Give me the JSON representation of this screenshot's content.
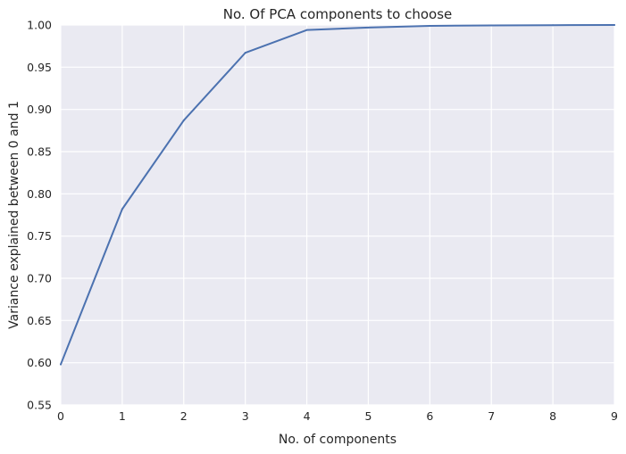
{
  "chart_data": {
    "type": "line",
    "title": "No. Of PCA components to choose",
    "xlabel": "No. of components",
    "ylabel": "Variance explained between 0 and 1",
    "xlim": [
      0,
      9
    ],
    "ylim": [
      0.55,
      1.0
    ],
    "x_ticks": [
      "0",
      "1",
      "2",
      "3",
      "4",
      "5",
      "6",
      "7",
      "8",
      "9"
    ],
    "y_ticks": [
      "0.55",
      "0.60",
      "0.65",
      "0.70",
      "0.75",
      "0.80",
      "0.85",
      "0.90",
      "0.95",
      "1.00"
    ],
    "grid": true,
    "series": [
      {
        "x": [
          0,
          1,
          2,
          3,
          4,
          5,
          6,
          7,
          8,
          9
        ],
        "values": [
          0.598,
          0.782,
          0.887,
          0.967,
          0.994,
          0.997,
          0.999,
          0.9995,
          0.9998,
          1.0
        ],
        "color": "#4c72b0"
      }
    ],
    "background": "#eaeaf2",
    "grid_color": "#ffffff"
  }
}
